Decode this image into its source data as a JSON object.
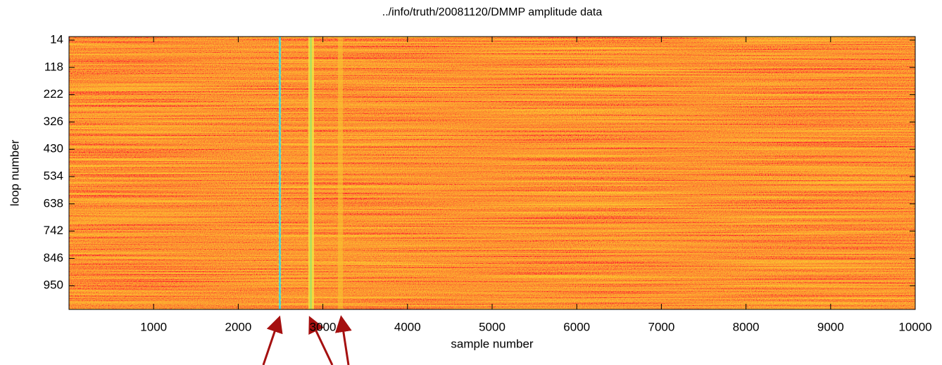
{
  "chart_data": {
    "type": "heatmap",
    "title": "../info/truth/20081120/DMMP amplitude data",
    "x_label": "sample number",
    "y_label": "loop number",
    "xlim": [
      0,
      10000
    ],
    "xticks": [
      1000,
      2000,
      3000,
      4000,
      5000,
      6000,
      7000,
      8000,
      9000,
      10000
    ],
    "ylim": [
      0.5,
      1040.5
    ],
    "yticks": [
      14,
      118,
      222,
      326,
      430,
      534,
      638,
      742,
      846,
      950
    ],
    "y_reversed": true
  }
}
